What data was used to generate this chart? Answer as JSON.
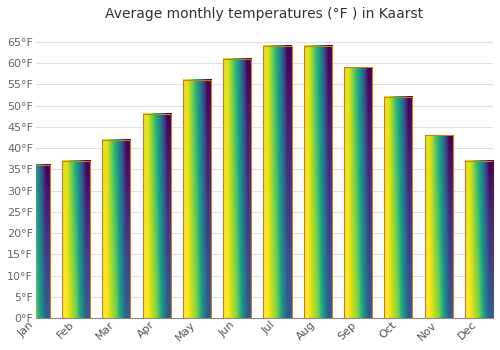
{
  "title": "Average monthly temperatures (°F ) in Kaarst",
  "months": [
    "Jan",
    "Feb",
    "Mar",
    "Apr",
    "May",
    "Jun",
    "Jul",
    "Aug",
    "Sep",
    "Oct",
    "Nov",
    "Dec"
  ],
  "values": [
    36,
    37,
    42,
    48,
    56,
    61,
    64,
    64,
    59,
    52,
    43,
    37
  ],
  "bar_color_top": "#F5A623",
  "bar_color_bottom": "#FFD966",
  "bar_edge_color": "#C8820A",
  "background_color": "#FFFFFF",
  "plot_bg_color": "#FFFFFF",
  "grid_color": "#E0E0E0",
  "ylim": [
    0,
    68
  ],
  "yticks": [
    0,
    5,
    10,
    15,
    20,
    25,
    30,
    35,
    40,
    45,
    50,
    55,
    60,
    65
  ],
  "title_fontsize": 10,
  "tick_fontsize": 8,
  "ytick_color": "#666666",
  "xtick_color": "#555555",
  "title_color": "#333333"
}
